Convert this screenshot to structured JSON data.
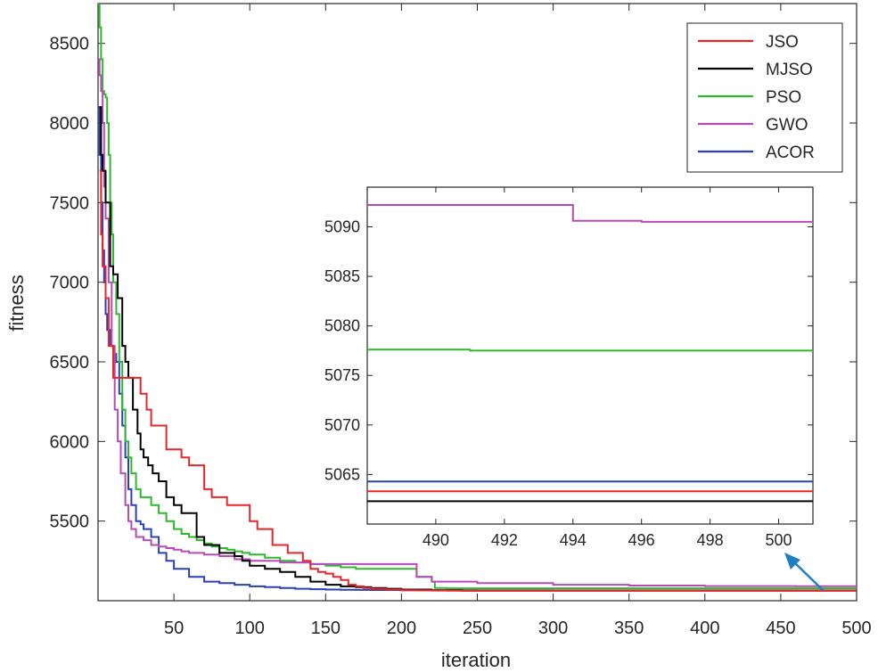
{
  "chart_data": {
    "type": "line",
    "xlabel": "iteration",
    "ylabel": "fitness",
    "xlim": [
      0,
      500
    ],
    "ylim": [
      5000,
      8750
    ],
    "xticks": [
      50,
      100,
      150,
      200,
      250,
      300,
      350,
      400,
      450,
      500
    ],
    "yticks": [
      5500,
      6000,
      6500,
      7000,
      7500,
      8000,
      8500
    ],
    "legend_position": "top-right",
    "series": [
      {
        "name": "JSO",
        "color": "#e8262a",
        "x": [
          1,
          2,
          3,
          5,
          7,
          10,
          12,
          15,
          18,
          20,
          22,
          25,
          28,
          32,
          35,
          40,
          45,
          50,
          55,
          60,
          65,
          70,
          75,
          80,
          85,
          90,
          95,
          100,
          105,
          110,
          115,
          120,
          125,
          130,
          135,
          140,
          145,
          150,
          155,
          160,
          165,
          170,
          175,
          180,
          190,
          200,
          210,
          220,
          230,
          500
        ],
        "y": [
          7700,
          7300,
          7100,
          6900,
          6600,
          6400,
          6400,
          6400,
          6400,
          6400,
          6400,
          6400,
          6300,
          6200,
          6100,
          6100,
          5950,
          5950,
          5900,
          5850,
          5850,
          5700,
          5650,
          5650,
          5600,
          5600,
          5600,
          5500,
          5450,
          5450,
          5350,
          5350,
          5300,
          5300,
          5250,
          5200,
          5180,
          5170,
          5150,
          5130,
          5100,
          5090,
          5080,
          5075,
          5070,
          5066,
          5065,
          5064,
          5063.5,
          5063.5
        ]
      },
      {
        "name": "MJSO",
        "color": "#000000",
        "x": [
          1,
          2,
          3,
          5,
          8,
          10,
          13,
          16,
          18,
          20,
          23,
          26,
          28,
          30,
          33,
          36,
          40,
          45,
          50,
          55,
          60,
          65,
          70,
          75,
          80,
          85,
          90,
          95,
          100,
          110,
          120,
          130,
          140,
          150,
          160,
          170,
          180,
          190,
          200,
          220,
          240,
          500
        ],
        "y": [
          8100,
          7800,
          7700,
          7500,
          7100,
          7050,
          6900,
          6600,
          6500,
          6400,
          6200,
          6050,
          5950,
          5900,
          5850,
          5800,
          5750,
          5650,
          5600,
          5550,
          5550,
          5400,
          5350,
          5350,
          5300,
          5300,
          5280,
          5250,
          5220,
          5200,
          5180,
          5150,
          5120,
          5100,
          5090,
          5085,
          5080,
          5075,
          5070,
          5066,
          5063,
          5062.5
        ]
      },
      {
        "name": "PSO",
        "color": "#2eb82e",
        "x": [
          0,
          1,
          2,
          3,
          4,
          5,
          6,
          7,
          8,
          9,
          10,
          12,
          14,
          16,
          18,
          20,
          22,
          25,
          28,
          30,
          35,
          40,
          45,
          50,
          55,
          60,
          65,
          70,
          75,
          80,
          85,
          90,
          95,
          100,
          110,
          120,
          130,
          140,
          150,
          160,
          170,
          180,
          190,
          200,
          210,
          220,
          222,
          230,
          240,
          250,
          260,
          280,
          300,
          500
        ],
        "y": [
          8750,
          8600,
          8400,
          8200,
          8180,
          8160,
          8000,
          7800,
          7500,
          7300,
          7000,
          6800,
          6500,
          6200,
          6000,
          5900,
          5800,
          5700,
          5650,
          5650,
          5600,
          5550,
          5500,
          5450,
          5420,
          5400,
          5380,
          5360,
          5340,
          5330,
          5320,
          5310,
          5300,
          5290,
          5270,
          5250,
          5240,
          5230,
          5220,
          5210,
          5200,
          5200,
          5200,
          5200,
          5150,
          5120,
          5080,
          5078,
          5078,
          5078,
          5078,
          5077.8,
          5077.8,
          5077.8
        ]
      },
      {
        "name": "GWO",
        "color": "#b84ab8",
        "x": [
          0,
          1,
          2,
          3,
          4,
          5,
          7,
          9,
          11,
          13,
          15,
          18,
          20,
          22,
          25,
          30,
          35,
          40,
          45,
          50,
          55,
          60,
          70,
          80,
          90,
          100,
          120,
          140,
          160,
          180,
          200,
          210,
          220,
          250,
          300,
          350,
          400,
          450,
          460,
          480,
          500
        ],
        "y": [
          8400,
          8300,
          8200,
          8000,
          7600,
          7400,
          7000,
          6600,
          6200,
          6000,
          5800,
          5600,
          5500,
          5450,
          5400,
          5380,
          5350,
          5340,
          5330,
          5320,
          5310,
          5300,
          5290,
          5280,
          5260,
          5250,
          5240,
          5230,
          5230,
          5230,
          5230,
          5150,
          5120,
          5110,
          5100,
          5095,
          5092,
          5092,
          5091,
          5090.5,
          5090.5
        ]
      },
      {
        "name": "ACOR",
        "color": "#2a3fb8",
        "x": [
          0,
          1,
          2,
          3,
          4,
          5,
          6,
          8,
          10,
          12,
          14,
          16,
          18,
          20,
          22,
          25,
          28,
          30,
          35,
          40,
          45,
          50,
          60,
          70,
          80,
          90,
          100,
          110,
          120,
          130,
          140,
          150,
          160,
          170,
          180,
          200,
          250,
          300,
          500
        ],
        "y": [
          8100,
          7800,
          7500,
          7200,
          7000,
          6800,
          6700,
          6600,
          6550,
          6500,
          6300,
          6100,
          5900,
          5700,
          5600,
          5500,
          5480,
          5450,
          5400,
          5300,
          5250,
          5200,
          5150,
          5120,
          5110,
          5100,
          5090,
          5085,
          5080,
          5075,
          5072,
          5070,
          5069,
          5068,
          5067,
          5066,
          5065,
          5064.5,
          5064.5
        ]
      }
    ],
    "inset": {
      "xlim": [
        488,
        501
      ],
      "ylim": [
        5060,
        5094
      ],
      "xticks": [
        490,
        492,
        494,
        496,
        498,
        500
      ],
      "yticks": [
        5065,
        5070,
        5075,
        5080,
        5085,
        5090
      ],
      "series": [
        {
          "name": "JSO",
          "x": [
            488,
            501
          ],
          "y": [
            5063.3,
            5063.3
          ]
        },
        {
          "name": "MJSO",
          "x": [
            488,
            501
          ],
          "y": [
            5062.3,
            5062.3
          ]
        },
        {
          "name": "PSO",
          "x": [
            488,
            491,
            501
          ],
          "y": [
            5077.6,
            5077.5,
            5077.5
          ]
        },
        {
          "name": "GWO",
          "x": [
            488,
            493,
            494,
            496,
            501
          ],
          "y": [
            5092.2,
            5092.2,
            5090.6,
            5090.5,
            5090.5
          ]
        },
        {
          "name": "ACOR",
          "x": [
            488,
            501
          ],
          "y": [
            5064.3,
            5064.3
          ]
        }
      ]
    }
  }
}
